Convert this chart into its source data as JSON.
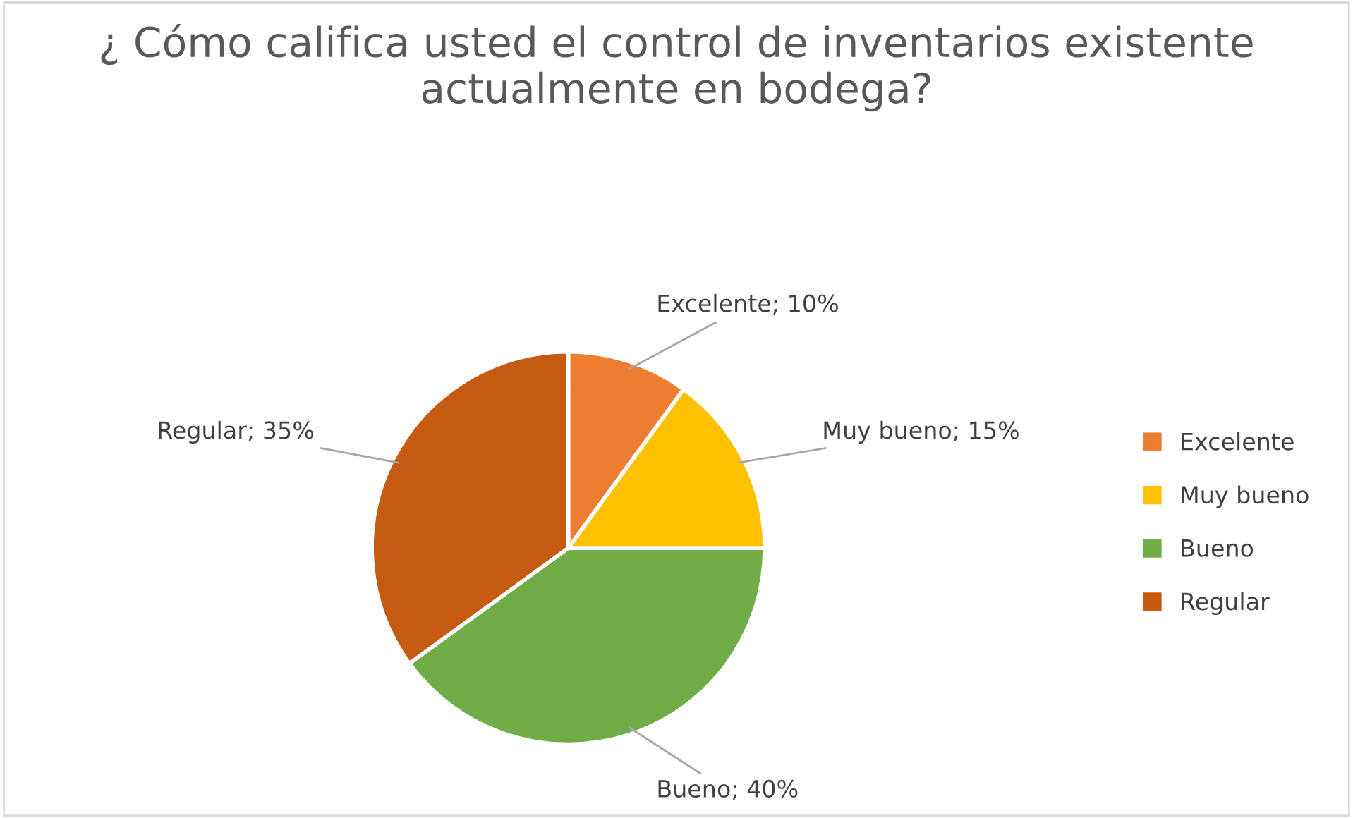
{
  "chart_data": {
    "type": "pie",
    "title": "¿ Cómo califica usted el control de inventarios existente actualmente en bodega?",
    "categories": [
      "Excelente",
      "Muy bueno",
      "Bueno",
      "Regular"
    ],
    "values": [
      10,
      15,
      40,
      35
    ],
    "colors": [
      "#ed7d31",
      "#ffc000",
      "#70ad47",
      "#c55a11"
    ],
    "value_labels": [
      "Excelente; 10%",
      "Muy bueno; 15%",
      "Bueno; 40%",
      "Regular; 35%"
    ],
    "legend": "right"
  }
}
